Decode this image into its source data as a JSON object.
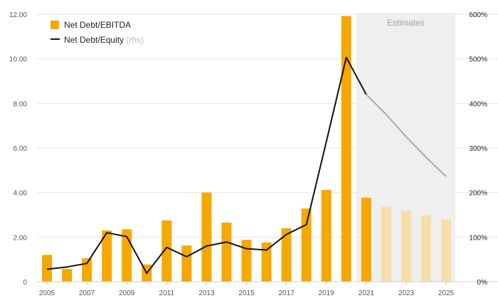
{
  "chart_data": {
    "type": "bar",
    "x": [
      2005,
      2006,
      2007,
      2008,
      2009,
      2010,
      2011,
      2012,
      2013,
      2014,
      2015,
      2016,
      2017,
      2018,
      2019,
      2020,
      2021,
      2022,
      2023,
      2024,
      2025
    ],
    "x_tick_labels": [
      "2005",
      "2007",
      "2009",
      "2011",
      "2013",
      "2015",
      "2017",
      "2019",
      "2021",
      "2023",
      "2025"
    ],
    "series": [
      {
        "name": "Net Debt/EBITDA",
        "type": "bar",
        "axis": "left",
        "values": [
          1.2,
          0.57,
          1.05,
          2.3,
          2.35,
          0.77,
          2.75,
          1.62,
          4.0,
          2.65,
          1.88,
          1.76,
          2.4,
          3.28,
          4.12,
          11.92,
          3.77,
          3.36,
          3.18,
          2.98,
          2.8
        ],
        "color": "#f5a800",
        "estimate_color": "#f5deaa"
      },
      {
        "name": "Net Debt/Equity",
        "name_suffix": "(rhs)",
        "type": "line",
        "axis": "right",
        "values": [
          28,
          33,
          41,
          110,
          101,
          19,
          77,
          56,
          80,
          89,
          74,
          71,
          106,
          128,
          314,
          503,
          420,
          375,
          325,
          279,
          236
        ],
        "color": "#111111",
        "estimate_color": "#a9a9a9"
      }
    ],
    "estimate_start": 2021,
    "estimate_region": {
      "from": 2021,
      "to": 2025,
      "label": "Estimates",
      "color": "#efefef"
    },
    "y_left": {
      "ticks": [
        "0",
        "2.00",
        "4.00",
        "6.00",
        "8.00",
        "10.00",
        "12.00"
      ],
      "ylim": [
        0,
        12
      ]
    },
    "y_right": {
      "ticks": [
        "0%",
        "100%",
        "200%",
        "300%",
        "400%",
        "500%",
        "600%"
      ],
      "ylim": [
        0,
        600
      ]
    },
    "grid": true,
    "legend_position": "top-left"
  }
}
